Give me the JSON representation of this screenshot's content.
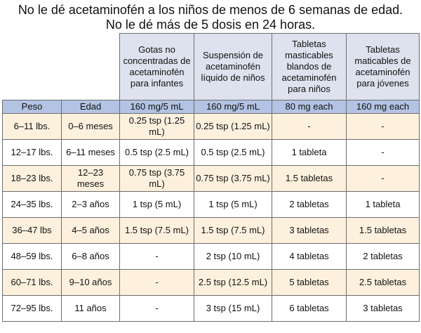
{
  "title_line1": "No le dé acetaminofén a los niños de menos de 6 semanas de edad.",
  "title_line2": "No le dé más de 5 dosis en 24 horas.",
  "header_products": [
    "Gotas no concentradas de acetaminofén para infantes",
    "Suspensión de acetaminofén líquido de niños",
    "Tabletas masticables blandos de acetaminofén para niños",
    "Tabletas maticables de acetaminofén para jóvenes"
  ],
  "units_row": [
    "Peso",
    "Edad",
    "160 mg/5 mL",
    "160 mg/5 mL",
    "80 mg each",
    "160 mg each"
  ],
  "rows": [
    {
      "peso": "6–11 lbs.",
      "edad": "0–6 meses",
      "gotas": "0.25 tsp (1.25 mL)",
      "suspension": "0.25 tsp (1.25 mL)",
      "blandos": "-",
      "jovenes": "-"
    },
    {
      "peso": "12–17 lbs.",
      "edad": "6–11 meses",
      "gotas": "0.5 tsp (2.5 mL)",
      "suspension": "0.5 tsp (2.5 mL)",
      "blandos": "1 tableta",
      "jovenes": "-"
    },
    {
      "peso": "18–23 lbs.",
      "edad": "12–23 meses",
      "gotas": "0.75 tsp (3.75 mL)",
      "suspension": "0.75 tsp (3.75 mL)",
      "blandos": "1.5 tabletas",
      "jovenes": "-"
    },
    {
      "peso": "24–35 lbs.",
      "edad": "2–3 años",
      "gotas": "1 tsp (5 mL)",
      "suspension": "1 tsp (5 mL)",
      "blandos": "2 tabletas",
      "jovenes": "1 tableta"
    },
    {
      "peso": "36–47 lbs",
      "edad": "4–5 años",
      "gotas": "1.5 tsp (7.5 mL)",
      "suspension": "1.5 tsp (7.5 mL)",
      "blandos": "3 tabletas",
      "jovenes": "1.5 tabletas"
    },
    {
      "peso": "48–59 lbs.",
      "edad": "6–8 años",
      "gotas": "-",
      "suspension": "2 tsp (10 mL)",
      "blandos": "4 tabletas",
      "jovenes": "2 tabletas"
    },
    {
      "peso": "60–71 lbs.",
      "edad": "9–10 años",
      "gotas": "-",
      "suspension": "2.5 tsp (12.5 mL)",
      "blandos": "5 tabletas",
      "jovenes": "2.5 tabletas"
    },
    {
      "peso": "72–95 lbs.",
      "edad": "11 años",
      "gotas": "-",
      "suspension": "3 tsp (15 mL)",
      "blandos": "6 tabletas",
      "jovenes": "3 tabletas"
    }
  ],
  "colors": {
    "header_bg": "#dde2ee",
    "units_bg": "#b2c3e3",
    "alt_row_bg": "#fdf1de",
    "plain_row_bg": "#ffffff",
    "border": "#6d6d6d"
  }
}
